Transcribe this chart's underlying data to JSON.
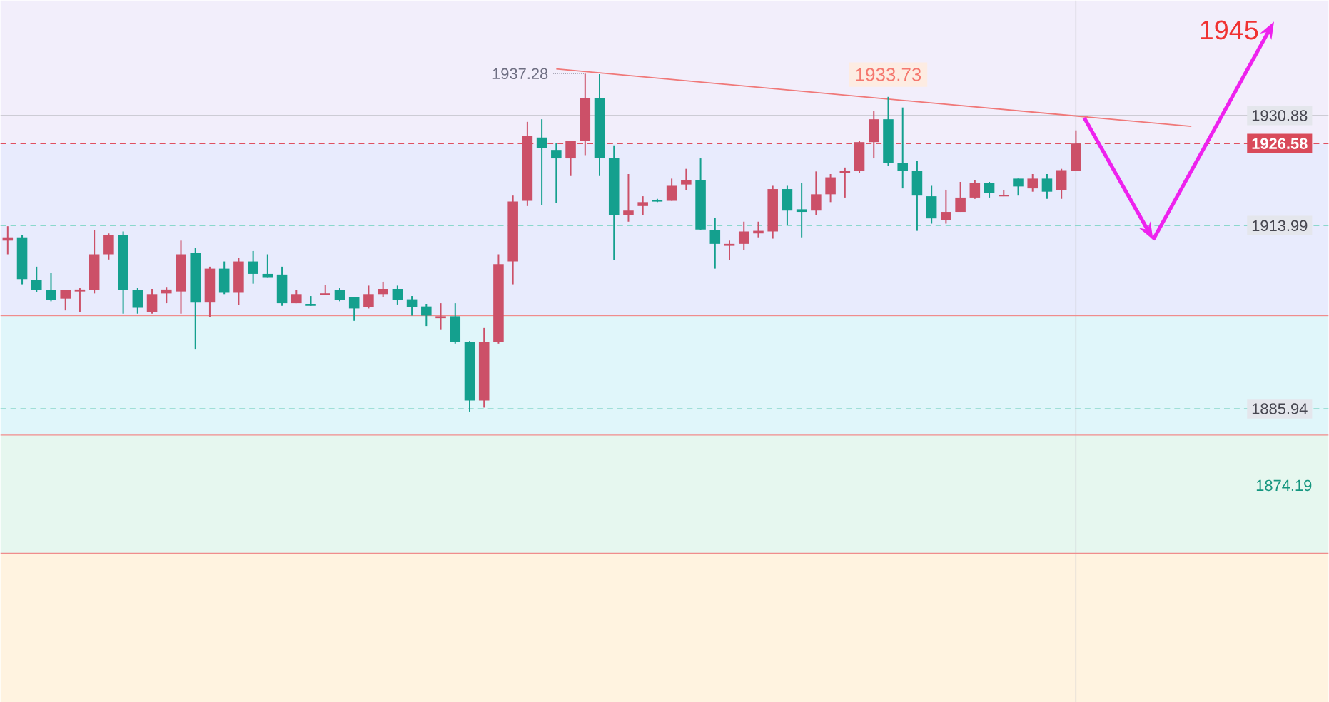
{
  "chart_data": {
    "type": "candlestick",
    "ylim": [
      1841,
      1948.5
    ],
    "yticks": [
      1874.19,
      1885.94,
      1913.99,
      1926.58,
      1930.88
    ],
    "categories": [
      null,
      null,
      null,
      null,
      null,
      null,
      null,
      null,
      null,
      null,
      null,
      null,
      null,
      null,
      null,
      null,
      null,
      null,
      null,
      null,
      null,
      null,
      null,
      null,
      null,
      null,
      null,
      null,
      null,
      null,
      null,
      null,
      null,
      null,
      null,
      null,
      null,
      null,
      null,
      null,
      null,
      null,
      null,
      null,
      null,
      null,
      null,
      null,
      null,
      null,
      null,
      null,
      null,
      null,
      null,
      null,
      null,
      null,
      null,
      null,
      null,
      null,
      null,
      null,
      null,
      null,
      null,
      null,
      null,
      null,
      null,
      null,
      null,
      null,
      null,
      null,
      null,
      null,
      null,
      null,
      null,
      null,
      null,
      null,
      null,
      null,
      null,
      null,
      null,
      null,
      null,
      null
    ],
    "ohlc": [
      [
        1911.7,
        1913.9,
        1909.6,
        1912.2
      ],
      [
        1912.2,
        1912.6,
        1905.0,
        1905.8
      ],
      [
        1905.7,
        1907.7,
        1903.8,
        1904.1
      ],
      [
        1904.1,
        1906.8,
        1902.4,
        1902.6
      ],
      [
        1902.8,
        1904.1,
        1901.0,
        1904.1
      ],
      [
        1903.9,
        1904.4,
        1900.8,
        1904.2
      ],
      [
        1904.1,
        1913.3,
        1903.6,
        1909.6
      ],
      [
        1909.6,
        1912.8,
        1908.8,
        1912.5
      ],
      [
        1912.5,
        1913.1,
        1900.5,
        1904.1
      ],
      [
        1904.1,
        1904.5,
        1900.5,
        1901.4
      ],
      [
        1900.8,
        1904.3,
        1900.5,
        1903.5
      ],
      [
        1903.6,
        1904.6,
        1902.1,
        1904.2
      ],
      [
        1903.9,
        1911.7,
        1900.5,
        1909.6
      ],
      [
        1909.8,
        1910.6,
        1895.1,
        1902.2
      ],
      [
        1902.2,
        1907.7,
        1900.0,
        1907.4
      ],
      [
        1907.4,
        1908.5,
        1903.5,
        1903.7
      ],
      [
        1903.7,
        1909.0,
        1901.8,
        1908.5
      ],
      [
        1908.5,
        1910.1,
        1905.1,
        1906.6
      ],
      [
        1906.6,
        1909.6,
        1906.1,
        1906.1
      ],
      [
        1906.5,
        1907.7,
        1901.7,
        1902.1
      ],
      [
        1902.1,
        1904.1,
        1902.1,
        1903.5
      ],
      [
        1902.0,
        1903.2,
        1901.7,
        1901.7
      ],
      [
        1903.5,
        1904.9,
        1903.4,
        1903.7
      ],
      [
        1904.1,
        1904.5,
        1902.4,
        1902.6
      ],
      [
        1903.0,
        1903.0,
        1899.4,
        1901.3
      ],
      [
        1901.5,
        1904.8,
        1901.3,
        1903.5
      ],
      [
        1903.5,
        1905.4,
        1903.0,
        1904.3
      ],
      [
        1904.3,
        1904.8,
        1901.9,
        1902.6
      ],
      [
        1902.7,
        1903.2,
        1900.2,
        1901.5
      ],
      [
        1901.6,
        1902.0,
        1898.6,
        1900.2
      ],
      [
        1899.8,
        1902.1,
        1898.1,
        1900.1
      ],
      [
        1900.1,
        1902.1,
        1895.9,
        1896.1
      ],
      [
        1896.1,
        1896.3,
        1885.5,
        1887.2
      ],
      [
        1887.2,
        1898.3,
        1886.1,
        1896.1
      ],
      [
        1896.1,
        1909.6,
        1895.9,
        1908.1
      ],
      [
        1908.5,
        1918.6,
        1905.0,
        1917.7
      ],
      [
        1917.8,
        1929.9,
        1917.0,
        1927.7
      ],
      [
        1927.5,
        1930.3,
        1917.2,
        1925.9
      ],
      [
        1925.6,
        1926.7,
        1917.5,
        1924.3
      ],
      [
        1924.3,
        1927.0,
        1921.6,
        1927.0
      ],
      [
        1927.0,
        1937.28,
        1924.8,
        1933.6
      ],
      [
        1933.6,
        1937.2,
        1921.6,
        1924.3
      ],
      [
        1924.3,
        1926.3,
        1908.7,
        1915.6
      ],
      [
        1915.6,
        1921.9,
        1914.6,
        1916.3
      ],
      [
        1917.0,
        1918.5,
        1915.6,
        1917.6
      ],
      [
        1917.8,
        1918.1,
        1917.6,
        1917.6
      ],
      [
        1917.8,
        1921.2,
        1917.8,
        1920.1
      ],
      [
        1920.3,
        1922.7,
        1919.4,
        1921.0
      ],
      [
        1921.0,
        1924.3,
        1913.3,
        1913.4
      ],
      [
        1913.3,
        1915.2,
        1907.4,
        1911.2
      ],
      [
        1910.9,
        1911.7,
        1908.7,
        1911.2
      ],
      [
        1911.2,
        1914.6,
        1910.3,
        1913.1
      ],
      [
        1912.8,
        1914.6,
        1912.2,
        1913.2
      ],
      [
        1913.1,
        1920.1,
        1912.0,
        1919.6
      ],
      [
        1919.6,
        1920.1,
        1914.1,
        1916.3
      ],
      [
        1916.5,
        1920.5,
        1912.2,
        1916.1
      ],
      [
        1916.3,
        1922.3,
        1915.6,
        1918.8
      ],
      [
        1918.8,
        1921.9,
        1917.6,
        1921.4
      ],
      [
        1922.1,
        1922.9,
        1918.3,
        1922.4
      ],
      [
        1922.4,
        1927.0,
        1922.1,
        1926.8
      ],
      [
        1926.8,
        1931.6,
        1924.3,
        1930.3
      ],
      [
        1930.3,
        1933.73,
        1923.2,
        1923.6
      ],
      [
        1923.6,
        1932.1,
        1919.7,
        1922.4
      ],
      [
        1922.4,
        1923.9,
        1913.2,
        1918.6
      ],
      [
        1918.5,
        1920.1,
        1914.3,
        1915.1
      ],
      [
        1914.8,
        1919.5,
        1914.3,
        1916.1
      ],
      [
        1916.1,
        1920.7,
        1916.1,
        1918.3
      ],
      [
        1918.3,
        1921.0,
        1918.1,
        1920.5
      ],
      [
        1920.5,
        1920.7,
        1918.3,
        1919.0
      ],
      [
        1918.6,
        1919.4,
        1918.5,
        1918.8
      ],
      [
        1921.2,
        1921.2,
        1918.6,
        1920.0
      ],
      [
        1919.7,
        1921.9,
        1919.2,
        1921.2
      ],
      [
        1921.2,
        1921.9,
        1918.1,
        1919.2
      ],
      [
        1919.4,
        1922.7,
        1918.1,
        1922.5
      ],
      [
        1922.4,
        1928.6,
        1922.4,
        1926.58
      ],
      null,
      null,
      null,
      null,
      null,
      null,
      null,
      null,
      null,
      null,
      null,
      null,
      null,
      null,
      null,
      null,
      null
    ],
    "series": [
      {
        "type": "line",
        "color": "#f07878",
        "values": [
          null,
          null,
          null,
          null,
          null,
          null,
          null,
          null,
          null,
          null,
          null,
          null,
          null,
          null,
          null,
          null,
          null,
          null,
          null,
          null,
          null,
          null,
          null,
          null,
          null,
          null,
          null,
          null,
          null,
          null,
          null,
          null,
          null,
          null,
          null,
          null,
          null,
          null,
          1938.0,
          null,
          null,
          null,
          null,
          null,
          null,
          null,
          null,
          null,
          null,
          null,
          null,
          null,
          null,
          null,
          null,
          null,
          null,
          null,
          null,
          null,
          null,
          null,
          null,
          null,
          null,
          null,
          null,
          null,
          null,
          null,
          null,
          null,
          null,
          null,
          null,
          null,
          null,
          null,
          null,
          null,
          null,
          null,
          1929.2,
          null,
          null,
          null,
          null,
          null,
          null,
          null,
          null,
          null
        ]
      }
    ],
    "bands": [
      {
        "axis": "y",
        "from": 1926.58,
        "to": 1948.5,
        "color": "#f2eefb"
      },
      {
        "axis": "y",
        "from": 1900.2,
        "to": 1926.58,
        "color": "#e8ebfd"
      },
      {
        "axis": "y",
        "from": 1881.9,
        "to": 1900.2,
        "color": "#e0f6fa"
      },
      {
        "axis": "y",
        "from": 1863.8,
        "to": 1881.9,
        "color": "#e6f7ef"
      },
      {
        "axis": "y",
        "from": 1841,
        "to": 1863.8,
        "color": "#fff3e0"
      }
    ],
    "ref_lines": [
      {
        "axis": "y",
        "value": 1930.88,
        "color": "#c0c0c8",
        "line_style": "solid"
      },
      {
        "axis": "y",
        "value": 1926.58,
        "color": "#e05060",
        "line_style": "dashed"
      },
      {
        "axis": "y",
        "value": 1913.99,
        "color": "#8ad8cc",
        "line_style": "dashed"
      },
      {
        "axis": "y",
        "value": 1885.94,
        "color": "#8ad8cc",
        "line_style": "dashed"
      },
      {
        "axis": "y",
        "value": 1900.2,
        "color": "#f08c8c",
        "line_style": "solid"
      },
      {
        "axis": "y",
        "value": 1881.9,
        "color": "#f08c8c",
        "line_style": "solid"
      },
      {
        "axis": "y",
        "value": 1863.8,
        "color": "#f08c8c",
        "line_style": "solid"
      }
    ],
    "annotations": [
      "1937.28",
      "1933.73",
      "1945"
    ]
  }
}
